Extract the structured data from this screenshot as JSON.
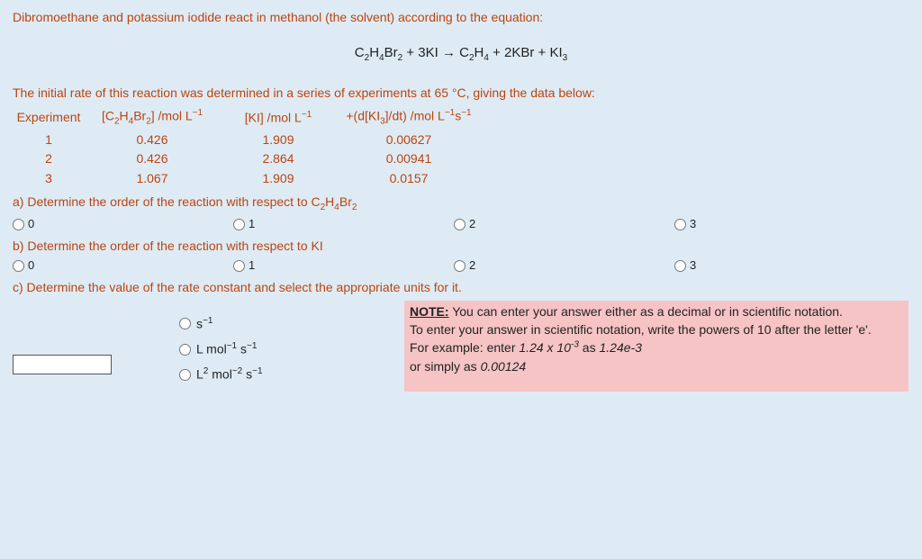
{
  "intro": "Dibromoethane and potassium iodide react in methanol (the solvent) according to the equation:",
  "equation_html": "C<span class='sub'>2</span>H<span class='sub'>4</span>Br<span class='sub'>2</span> + 3KI → C<span class='sub'>2</span>H<span class='sub'>4</span> + 2KBr + KI<span class='sub'>3</span>",
  "rate_intro": "The initial rate of this reaction was determined in a series of experiments at 65 °C, giving the data below:",
  "table": {
    "headers_html": [
      "Experiment",
      "[C<span class='sub'>2</span>H<span class='sub'>4</span>Br<span class='sub'>2</span>] /mol L<span class='sup'>−1</span>",
      "[KI] /mol L<span class='sup'>−1</span>",
      "+(d[KI<span class='sub'>3</span>]/dt) /mol L<span class='sup'>−1</span>s<span class='sup'>−1</span>"
    ],
    "rows": [
      [
        "1",
        "0.426",
        "1.909",
        "0.00627"
      ],
      [
        "2",
        "0.426",
        "2.864",
        "0.00941"
      ],
      [
        "3",
        "1.067",
        "1.909",
        "0.0157"
      ]
    ]
  },
  "qa_html": "a) Determine the order of the reaction with respect to C<span class='sub'>2</span>H<span class='sub'>4</span>Br<span class='sub'>2</span>",
  "qb": "b) Determine the order of the reaction with respect to KI",
  "qc": "c) Determine the value of the rate constant and select the appropriate units for it.",
  "order_options": [
    "0",
    "1",
    "2",
    "3"
  ],
  "unit_options_html": [
    "s<span class='sup'>−1</span>",
    "L mol<span class='sup'>−1</span> s<span class='sup'>−1</span>",
    "L<span class='sup'>2</span> mol<span class='sup'>−2</span> s<span class='sup'>−1</span>"
  ],
  "note": {
    "title": "NOTE:",
    "l1": " You can enter your answer either as a decimal or in scientific notation.",
    "l2": "To enter your answer in scientific notation, write the powers of 10 after the letter 'e'.",
    "l3a": "For example: enter ",
    "l3b": "1.24 x 10",
    "l3c": " as ",
    "l3d": "1.24e-3",
    "l4a": "or simply as ",
    "l4b": "0.00124"
  },
  "colors": {
    "page_bg": "#deebf4",
    "text_main": "#bb4411",
    "text_black": "#222222",
    "note_bg": "#f6c4c4"
  }
}
